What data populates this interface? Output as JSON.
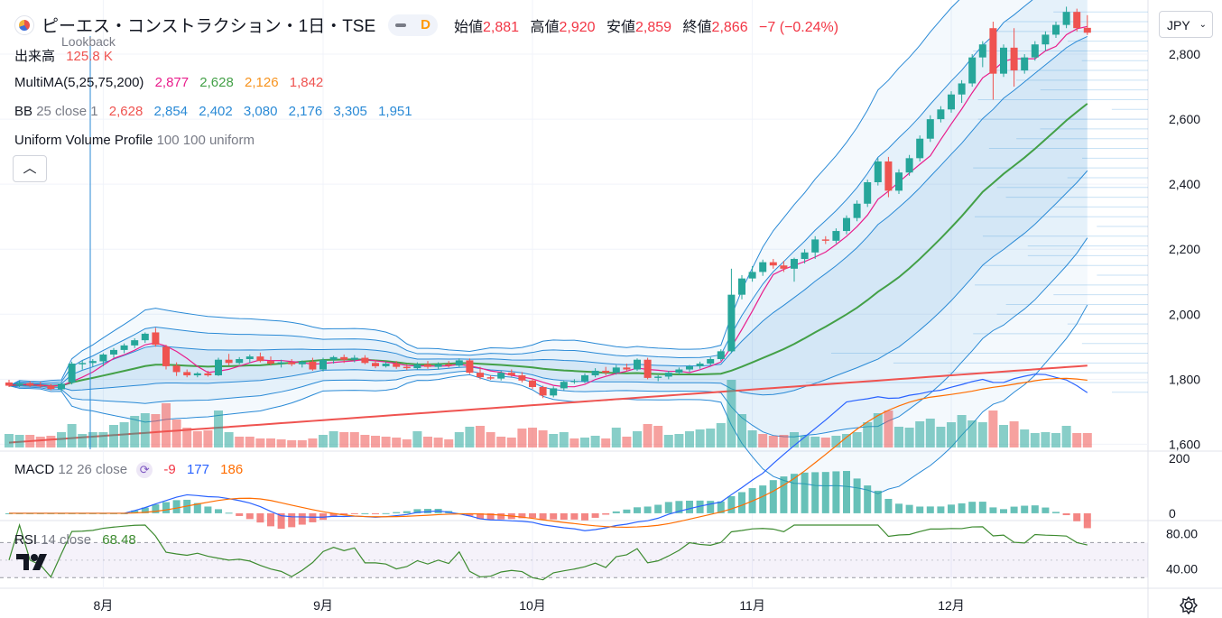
{
  "header": {
    "title": "ピーエス・コンストラクション・1日・TSE",
    "interval_badge": "D",
    "open_label": "始値",
    "open": "2,881",
    "high_label": "高値",
    "high": "2,920",
    "low_label": "安値",
    "low": "2,859",
    "close_label": "終値",
    "close": "2,866",
    "change": "−7 (−0.24%)",
    "lookback": "Lookback"
  },
  "currency": "JPY",
  "volume_legend": {
    "label": "出来高",
    "value": "125.8 K"
  },
  "ma_legend": {
    "label": "MultiMA(5,25,75,200)",
    "v1": "2,877",
    "v2": "2,628",
    "v3": "2,126",
    "v4": "1,842"
  },
  "bb_legend": {
    "label": "BB",
    "params": "25 close 1",
    "v1": "2,628",
    "v2": "2,854",
    "v3": "2,402",
    "v4": "3,080",
    "v5": "2,176",
    "v6": "3,305",
    "v7": "1,951"
  },
  "vp_legend": {
    "label": "Uniform Volume Profile",
    "params": "100 100 uniform"
  },
  "macd_legend": {
    "label": "MACD",
    "params": "12 26 close",
    "v1": "-9",
    "v2": "177",
    "v3": "186"
  },
  "rsi_legend": {
    "label": "RSI",
    "params": "14 close",
    "value": "68.48"
  },
  "colors": {
    "up": "#26a69a",
    "down": "#ef5350",
    "ma5": "#e91e8c",
    "ma25": "#43a047",
    "ma75": "#f7931e",
    "ma200": "#ef5350",
    "bb": "#2a8ad6",
    "macd": "#2962ff",
    "signal": "#ff6d00",
    "rsi": "#3d8b30"
  },
  "chart_data": {
    "type": "candlestick",
    "y_axis_ticks": [
      "1,600",
      "1,800",
      "2,000",
      "2,200",
      "2,400",
      "2,600",
      "2,800"
    ],
    "y_range": [
      1590,
      2950
    ],
    "x_axis_labels": [
      {
        "label": "8月",
        "index": 9
      },
      {
        "label": "9月",
        "index": 30
      },
      {
        "label": "10月",
        "index": 50
      },
      {
        "label": "11月",
        "index": 71
      },
      {
        "label": "12月",
        "index": 90
      }
    ],
    "candles": [
      [
        1790,
        1798,
        1776,
        1780
      ],
      [
        1782,
        1795,
        1776,
        1788
      ],
      [
        1788,
        1794,
        1776,
        1780
      ],
      [
        1781,
        1792,
        1774,
        1778
      ],
      [
        1780,
        1786,
        1766,
        1770
      ],
      [
        1769,
        1790,
        1762,
        1786
      ],
      [
        1790,
        1854,
        1784,
        1848
      ],
      [
        1846,
        1858,
        1830,
        1850
      ],
      [
        1850,
        1862,
        1838,
        1856
      ],
      [
        1855,
        1880,
        1840,
        1876
      ],
      [
        1876,
        1896,
        1866,
        1890
      ],
      [
        1890,
        1910,
        1880,
        1904
      ],
      [
        1904,
        1926,
        1896,
        1920
      ],
      [
        1920,
        1944,
        1912,
        1940
      ],
      [
        1944,
        1958,
        1900,
        1906
      ],
      [
        1900,
        1906,
        1830,
        1840
      ],
      [
        1842,
        1852,
        1810,
        1822
      ],
      [
        1822,
        1830,
        1806,
        1812
      ],
      [
        1812,
        1822,
        1806,
        1818
      ],
      [
        1818,
        1826,
        1808,
        1812
      ],
      [
        1812,
        1866,
        1810,
        1860
      ],
      [
        1860,
        1878,
        1842,
        1850
      ],
      [
        1850,
        1868,
        1846,
        1862
      ],
      [
        1862,
        1876,
        1850,
        1870
      ],
      [
        1870,
        1882,
        1852,
        1856
      ],
      [
        1856,
        1870,
        1842,
        1848
      ],
      [
        1848,
        1860,
        1836,
        1852
      ],
      [
        1852,
        1862,
        1840,
        1846
      ],
      [
        1846,
        1858,
        1836,
        1854
      ],
      [
        1854,
        1866,
        1826,
        1830
      ],
      [
        1830,
        1866,
        1824,
        1860
      ],
      [
        1860,
        1872,
        1848,
        1868
      ],
      [
        1868,
        1876,
        1850,
        1860
      ],
      [
        1860,
        1874,
        1852,
        1866
      ],
      [
        1866,
        1874,
        1846,
        1850
      ],
      [
        1850,
        1860,
        1834,
        1840
      ],
      [
        1840,
        1854,
        1836,
        1848
      ],
      [
        1848,
        1856,
        1832,
        1838
      ],
      [
        1838,
        1846,
        1828,
        1834
      ],
      [
        1834,
        1852,
        1830,
        1846
      ],
      [
        1846,
        1856,
        1832,
        1838
      ],
      [
        1838,
        1852,
        1830,
        1846
      ],
      [
        1846,
        1856,
        1836,
        1842
      ],
      [
        1842,
        1864,
        1838,
        1858
      ],
      [
        1858,
        1864,
        1816,
        1820
      ],
      [
        1820,
        1838,
        1800,
        1806
      ],
      [
        1806,
        1812,
        1798,
        1802
      ],
      [
        1802,
        1826,
        1796,
        1820
      ],
      [
        1820,
        1830,
        1808,
        1812
      ],
      [
        1812,
        1822,
        1790,
        1796
      ],
      [
        1796,
        1802,
        1770,
        1776
      ],
      [
        1776,
        1780,
        1742,
        1750
      ],
      [
        1750,
        1778,
        1744,
        1772
      ],
      [
        1772,
        1796,
        1766,
        1792
      ],
      [
        1792,
        1800,
        1786,
        1794
      ],
      [
        1794,
        1818,
        1788,
        1812
      ],
      [
        1812,
        1834,
        1806,
        1826
      ],
      [
        1826,
        1838,
        1812,
        1820
      ],
      [
        1820,
        1844,
        1814,
        1836
      ],
      [
        1836,
        1848,
        1824,
        1830
      ],
      [
        1830,
        1864,
        1826,
        1860
      ],
      [
        1860,
        1866,
        1800,
        1804
      ],
      [
        1804,
        1812,
        1794,
        1808
      ],
      [
        1808,
        1826,
        1800,
        1820
      ],
      [
        1820,
        1836,
        1814,
        1830
      ],
      [
        1830,
        1844,
        1822,
        1840
      ],
      [
        1840,
        1854,
        1832,
        1848
      ],
      [
        1848,
        1868,
        1842,
        1862
      ],
      [
        1862,
        1892,
        1856,
        1886
      ],
      [
        1886,
        2140,
        1880,
        2060
      ],
      [
        2060,
        2120,
        2046,
        2110
      ],
      [
        2110,
        2148,
        2100,
        2130
      ],
      [
        2130,
        2168,
        2118,
        2160
      ],
      [
        2160,
        2170,
        2140,
        2150
      ],
      [
        2150,
        2164,
        2130,
        2140
      ],
      [
        2140,
        2174,
        2100,
        2170
      ],
      [
        2170,
        2200,
        2156,
        2190
      ],
      [
        2190,
        2240,
        2170,
        2230
      ],
      [
        2230,
        2240,
        2216,
        2226
      ],
      [
        2226,
        2264,
        2218,
        2256
      ],
      [
        2256,
        2304,
        2246,
        2296
      ],
      [
        2296,
        2350,
        2286,
        2340
      ],
      [
        2340,
        2414,
        2330,
        2406
      ],
      [
        2406,
        2480,
        2396,
        2470
      ],
      [
        2470,
        2484,
        2360,
        2380
      ],
      [
        2380,
        2446,
        2370,
        2436
      ],
      [
        2436,
        2490,
        2426,
        2480
      ],
      [
        2480,
        2550,
        2470,
        2540
      ],
      [
        2540,
        2612,
        2530,
        2600
      ],
      [
        2600,
        2640,
        2590,
        2630
      ],
      [
        2630,
        2686,
        2620,
        2676
      ],
      [
        2676,
        2720,
        2650,
        2710
      ],
      [
        2710,
        2800,
        2700,
        2790
      ],
      [
        2790,
        2840,
        2760,
        2830
      ],
      [
        2880,
        2900,
        2660,
        2740
      ],
      [
        2740,
        2830,
        2730,
        2820
      ],
      [
        2820,
        2880,
        2700,
        2750
      ],
      [
        2750,
        2800,
        2740,
        2790
      ],
      [
        2790,
        2840,
        2780,
        2830
      ],
      [
        2830,
        2870,
        2810,
        2860
      ],
      [
        2860,
        2900,
        2850,
        2890
      ],
      [
        2890,
        2946,
        2880,
        2930
      ],
      [
        2930,
        2940,
        2870,
        2880
      ],
      [
        2881,
        2920,
        2859,
        2866
      ]
    ],
    "volume": [
      [
        1,
        0.3
      ],
      [
        1,
        0.28
      ],
      [
        0,
        0.28
      ],
      [
        0,
        0.24
      ],
      [
        0,
        0.26
      ],
      [
        1,
        0.34
      ],
      [
        1,
        0.52
      ],
      [
        1,
        0.3
      ],
      [
        1,
        0.34
      ],
      [
        1,
        0.34
      ],
      [
        1,
        0.5
      ],
      [
        1,
        0.56
      ],
      [
        1,
        0.7
      ],
      [
        1,
        0.76
      ],
      [
        0,
        0.74
      ],
      [
        0,
        0.98
      ],
      [
        0,
        0.62
      ],
      [
        0,
        0.44
      ],
      [
        0,
        0.36
      ],
      [
        0,
        0.38
      ],
      [
        1,
        0.82
      ],
      [
        1,
        0.34
      ],
      [
        0,
        0.24
      ],
      [
        0,
        0.24
      ],
      [
        0,
        0.2
      ],
      [
        0,
        0.2
      ],
      [
        0,
        0.18
      ],
      [
        0,
        0.16
      ],
      [
        0,
        0.16
      ],
      [
        0,
        0.2
      ],
      [
        1,
        0.28
      ],
      [
        1,
        0.36
      ],
      [
        0,
        0.34
      ],
      [
        0,
        0.34
      ],
      [
        0,
        0.28
      ],
      [
        0,
        0.26
      ],
      [
        0,
        0.24
      ],
      [
        0,
        0.22
      ],
      [
        0,
        0.18
      ],
      [
        1,
        0.36
      ],
      [
        0,
        0.24
      ],
      [
        0,
        0.22
      ],
      [
        0,
        0.18
      ],
      [
        1,
        0.34
      ],
      [
        1,
        0.46
      ],
      [
        0,
        0.48
      ],
      [
        0,
        0.34
      ],
      [
        0,
        0.24
      ],
      [
        0,
        0.22
      ],
      [
        0,
        0.42
      ],
      [
        0,
        0.44
      ],
      [
        0,
        0.38
      ],
      [
        1,
        0.3
      ],
      [
        1,
        0.34
      ],
      [
        0,
        0.2
      ],
      [
        1,
        0.22
      ],
      [
        1,
        0.26
      ],
      [
        0,
        0.2
      ],
      [
        1,
        0.44
      ],
      [
        0,
        0.24
      ],
      [
        1,
        0.36
      ],
      [
        0,
        0.52
      ],
      [
        0,
        0.48
      ],
      [
        1,
        0.28
      ],
      [
        1,
        0.3
      ],
      [
        1,
        0.36
      ],
      [
        1,
        0.4
      ],
      [
        1,
        0.42
      ],
      [
        1,
        0.54
      ],
      [
        1,
        1.5
      ],
      [
        1,
        0.74
      ],
      [
        1,
        0.38
      ],
      [
        0,
        0.3
      ],
      [
        0,
        0.26
      ],
      [
        0,
        0.28
      ],
      [
        1,
        0.34
      ],
      [
        1,
        0.26
      ],
      [
        1,
        0.24
      ],
      [
        0,
        0.22
      ],
      [
        1,
        0.26
      ],
      [
        1,
        0.3
      ],
      [
        1,
        0.34
      ],
      [
        1,
        0.56
      ],
      [
        1,
        0.76
      ],
      [
        0,
        0.82
      ],
      [
        1,
        0.46
      ],
      [
        1,
        0.44
      ],
      [
        1,
        0.58
      ],
      [
        1,
        0.64
      ],
      [
        1,
        0.46
      ],
      [
        1,
        0.56
      ],
      [
        1,
        0.72
      ],
      [
        1,
        0.6
      ],
      [
        1,
        0.56
      ],
      [
        0,
        0.82
      ],
      [
        1,
        0.5
      ],
      [
        0,
        0.58
      ],
      [
        1,
        0.4
      ],
      [
        1,
        0.32
      ],
      [
        1,
        0.34
      ],
      [
        1,
        0.32
      ],
      [
        1,
        0.48
      ],
      [
        0,
        0.32
      ],
      [
        0,
        0.32
      ]
    ],
    "macd_axis_ticks": [
      "200",
      "0"
    ],
    "rsi_axis_ticks": [
      "80.00",
      "40.00"
    ],
    "rsi_levels": [
      70,
      30
    ],
    "rsi_range": [
      20,
      90
    ],
    "macd_range": [
      -20,
      210
    ]
  }
}
